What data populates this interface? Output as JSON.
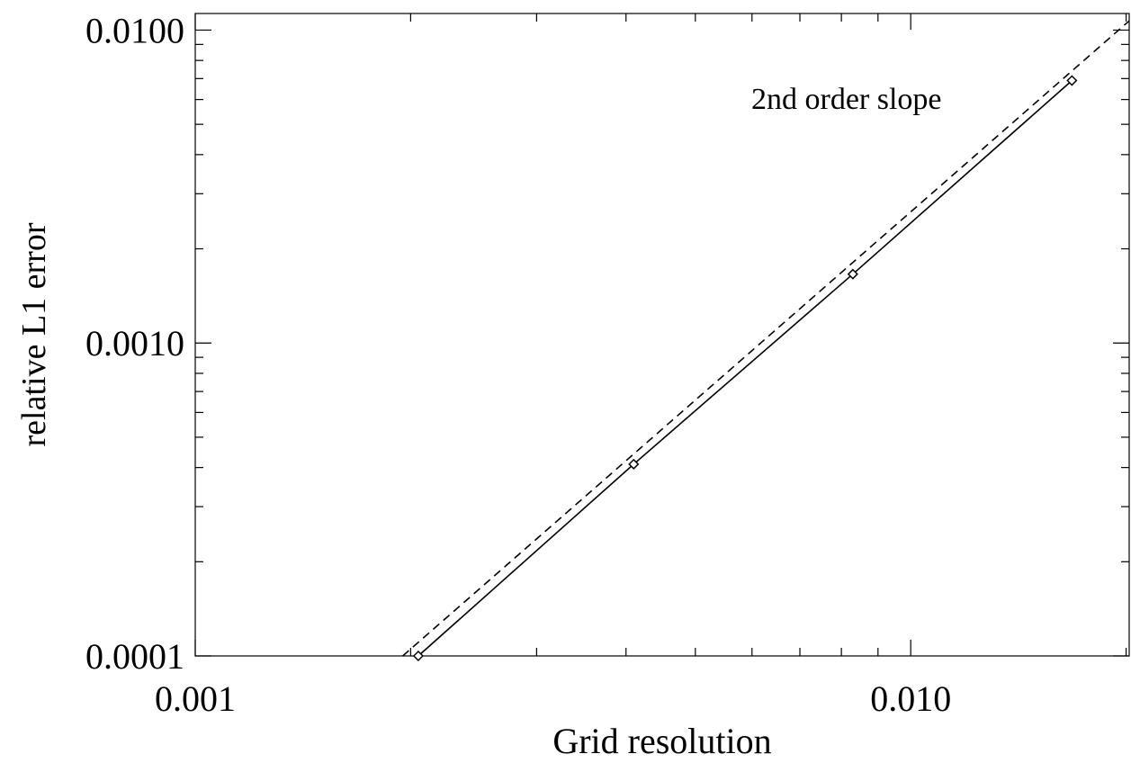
{
  "chart_data": {
    "type": "line",
    "xlabel": "Grid resolution",
    "ylabel": "relative L1 error",
    "xscale": "log",
    "yscale": "log",
    "xlim": [
      0.001,
      0.0202
    ],
    "ylim": [
      0.0001,
      0.0113
    ],
    "x_tick_labels": [
      "0.001",
      "0.010"
    ],
    "x_tick_values": [
      0.001,
      0.01
    ],
    "y_tick_labels": [
      "0.0001",
      "0.0010",
      "0.0100"
    ],
    "y_tick_values": [
      0.0001,
      0.001,
      0.01
    ],
    "grid": false,
    "series": [
      {
        "style": "solid",
        "marker": "diamond",
        "x": [
          0.00205,
          0.0041,
          0.0083,
          0.0168
        ],
        "y": [
          0.0001,
          0.00041,
          0.00166,
          0.0069
        ]
      },
      {
        "style": "dashed",
        "marker": "none",
        "x": [
          0.00195,
          0.0202
        ],
        "y": [
          0.0001,
          0.0107
        ]
      }
    ],
    "annotations": [
      {
        "text": "2nd order slope",
        "x": 0.0084,
        "y": 0.0057
      }
    ],
    "colors": {
      "line": "#000000",
      "background": "#ffffff"
    }
  }
}
